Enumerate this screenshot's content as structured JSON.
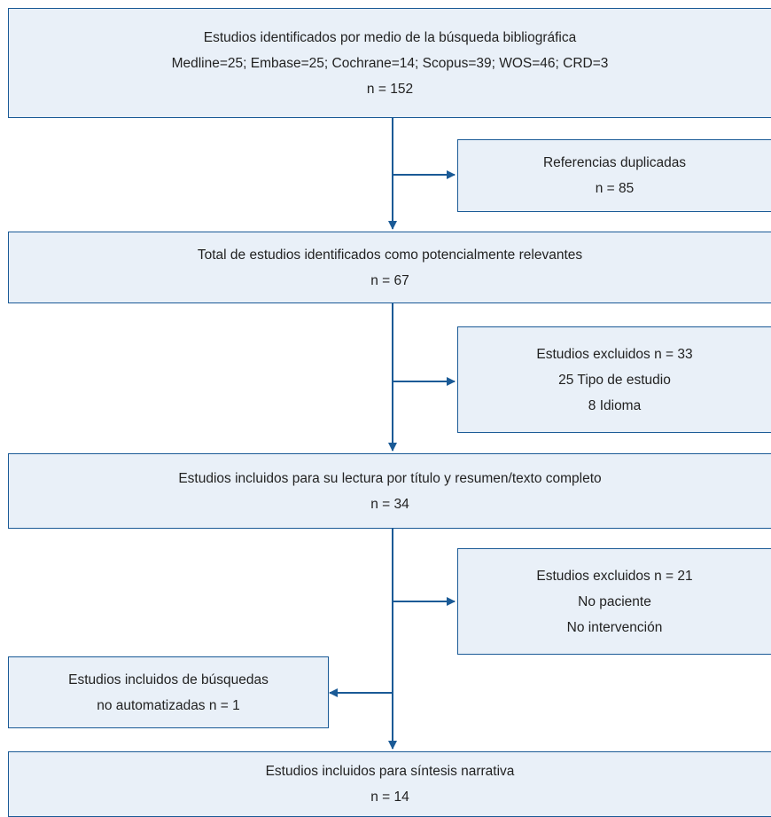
{
  "colors": {
    "box_fill": "#e9f0f8",
    "box_border": "#1a5a96",
    "arrow": "#1a5a96"
  },
  "boxes": {
    "identified": {
      "lines": [
        "Estudios identificados por medio de la búsqueda bibliográfica",
        "Medline=25; Embase=25; Cochrane=14; Scopus=39; WOS=46; CRD=3",
        "n = 152"
      ]
    },
    "duplicates": {
      "lines": [
        "Referencias duplicadas",
        "n = 85"
      ]
    },
    "relevant": {
      "lines": [
        "Total de estudios identificados como potencialmente relevantes",
        "n = 67"
      ]
    },
    "excluded_1": {
      "lines": [
        "Estudios excluidos n = 33",
        "25 Tipo de estudio",
        "8 Idioma"
      ]
    },
    "included_reading": {
      "lines": [
        "Estudios incluidos para su lectura por título y resumen/texto completo",
        "n = 34"
      ]
    },
    "excluded_2": {
      "lines": [
        "Estudios excluidos n = 21",
        "No paciente",
        "No intervención"
      ]
    },
    "manual_search": {
      "lines": [
        "Estudios incluidos de búsquedas",
        "no automatizadas n = 1"
      ]
    },
    "final": {
      "lines": [
        "Estudios incluidos para síntesis narrativa",
        "n = 14"
      ]
    }
  }
}
